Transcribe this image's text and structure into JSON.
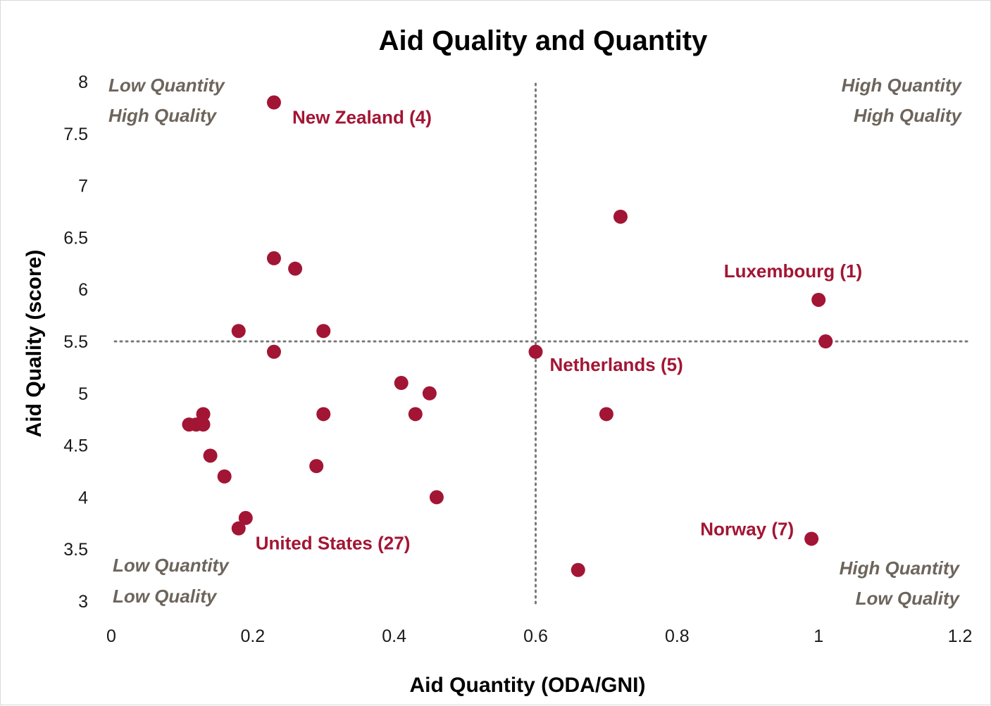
{
  "chart_data": {
    "type": "scatter",
    "title": "Aid Quality and Quantity",
    "xlabel": "Aid Quantity (ODA/GNI)",
    "ylabel": "Aid Quality (score)",
    "xlim": [
      0,
      1.2
    ],
    "ylim": [
      3,
      8
    ],
    "xticks": [
      "0",
      "0.2",
      "0.4",
      "0.6",
      "0.8",
      "1",
      "1.2"
    ],
    "yticks": [
      "3",
      "3.5",
      "4",
      "4.5",
      "5",
      "5.5",
      "6",
      "6.5",
      "7",
      "7.5",
      "8"
    ],
    "grid": false,
    "reference_lines": {
      "x": 0.6,
      "y": 5.5,
      "style": "dotted"
    },
    "quadrant_labels": {
      "top_left": [
        "Low Quantity",
        "High Quality"
      ],
      "top_right": [
        "High Quantity",
        "High Quality"
      ],
      "bottom_left": [
        "Low Quantity",
        "Low Quality"
      ],
      "bottom_right": [
        "High Quantity",
        "Low Quality"
      ]
    },
    "point_color": "#a31534",
    "quadrant_label_color": "#6d655c",
    "points": [
      {
        "x": 0.23,
        "y": 7.8,
        "label": "New Zealand (4)"
      },
      {
        "x": 0.23,
        "y": 6.3
      },
      {
        "x": 0.26,
        "y": 6.2
      },
      {
        "x": 0.18,
        "y": 5.6
      },
      {
        "x": 0.3,
        "y": 5.6
      },
      {
        "x": 0.23,
        "y": 5.4
      },
      {
        "x": 0.41,
        "y": 5.1
      },
      {
        "x": 0.45,
        "y": 5.0
      },
      {
        "x": 0.43,
        "y": 4.8
      },
      {
        "x": 0.3,
        "y": 4.8
      },
      {
        "x": 0.13,
        "y": 4.8
      },
      {
        "x": 0.11,
        "y": 4.7
      },
      {
        "x": 0.12,
        "y": 4.7
      },
      {
        "x": 0.13,
        "y": 4.7
      },
      {
        "x": 0.14,
        "y": 4.4
      },
      {
        "x": 0.29,
        "y": 4.3
      },
      {
        "x": 0.16,
        "y": 4.2
      },
      {
        "x": 0.46,
        "y": 4.0
      },
      {
        "x": 0.19,
        "y": 3.8
      },
      {
        "x": 0.18,
        "y": 3.7,
        "label": "United States (27)"
      },
      {
        "x": 0.72,
        "y": 6.7
      },
      {
        "x": 1.0,
        "y": 5.9,
        "label": "Luxembourg (1)"
      },
      {
        "x": 1.01,
        "y": 5.5
      },
      {
        "x": 0.6,
        "y": 5.4,
        "label": "Netherlands (5)"
      },
      {
        "x": 0.7,
        "y": 4.8
      },
      {
        "x": 0.99,
        "y": 3.6,
        "label": "Norway (7)"
      },
      {
        "x": 0.66,
        "y": 3.3
      }
    ]
  }
}
